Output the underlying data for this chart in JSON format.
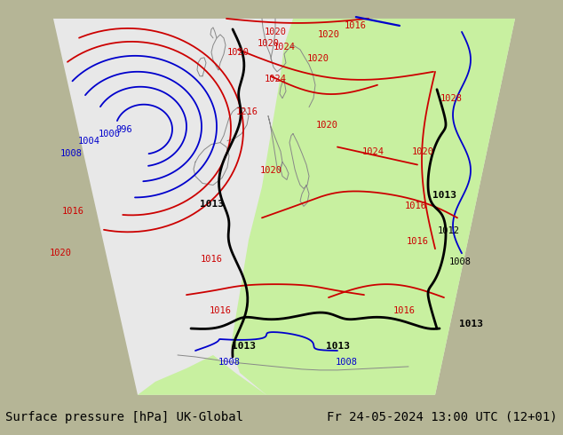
{
  "title_left": "Surface pressure [hPa] UK-Global",
  "title_right": "Fr 24-05-2024 13:00 UTC (12+01)",
  "bg_color": "#b5b596",
  "domain_color": "#e8e8e8",
  "green_fill": "#c8f0a0",
  "footer_bg": "#ffffff",
  "font_size_footer": 10,
  "blue_color": "#0000cc",
  "red_color": "#cc0000",
  "black_color": "#000000",
  "coast_color": "#888888",
  "coast_lw": 0.7,
  "isobar_lw": 1.3,
  "front_lw": 2.0,
  "label_fontsize": 7.5
}
